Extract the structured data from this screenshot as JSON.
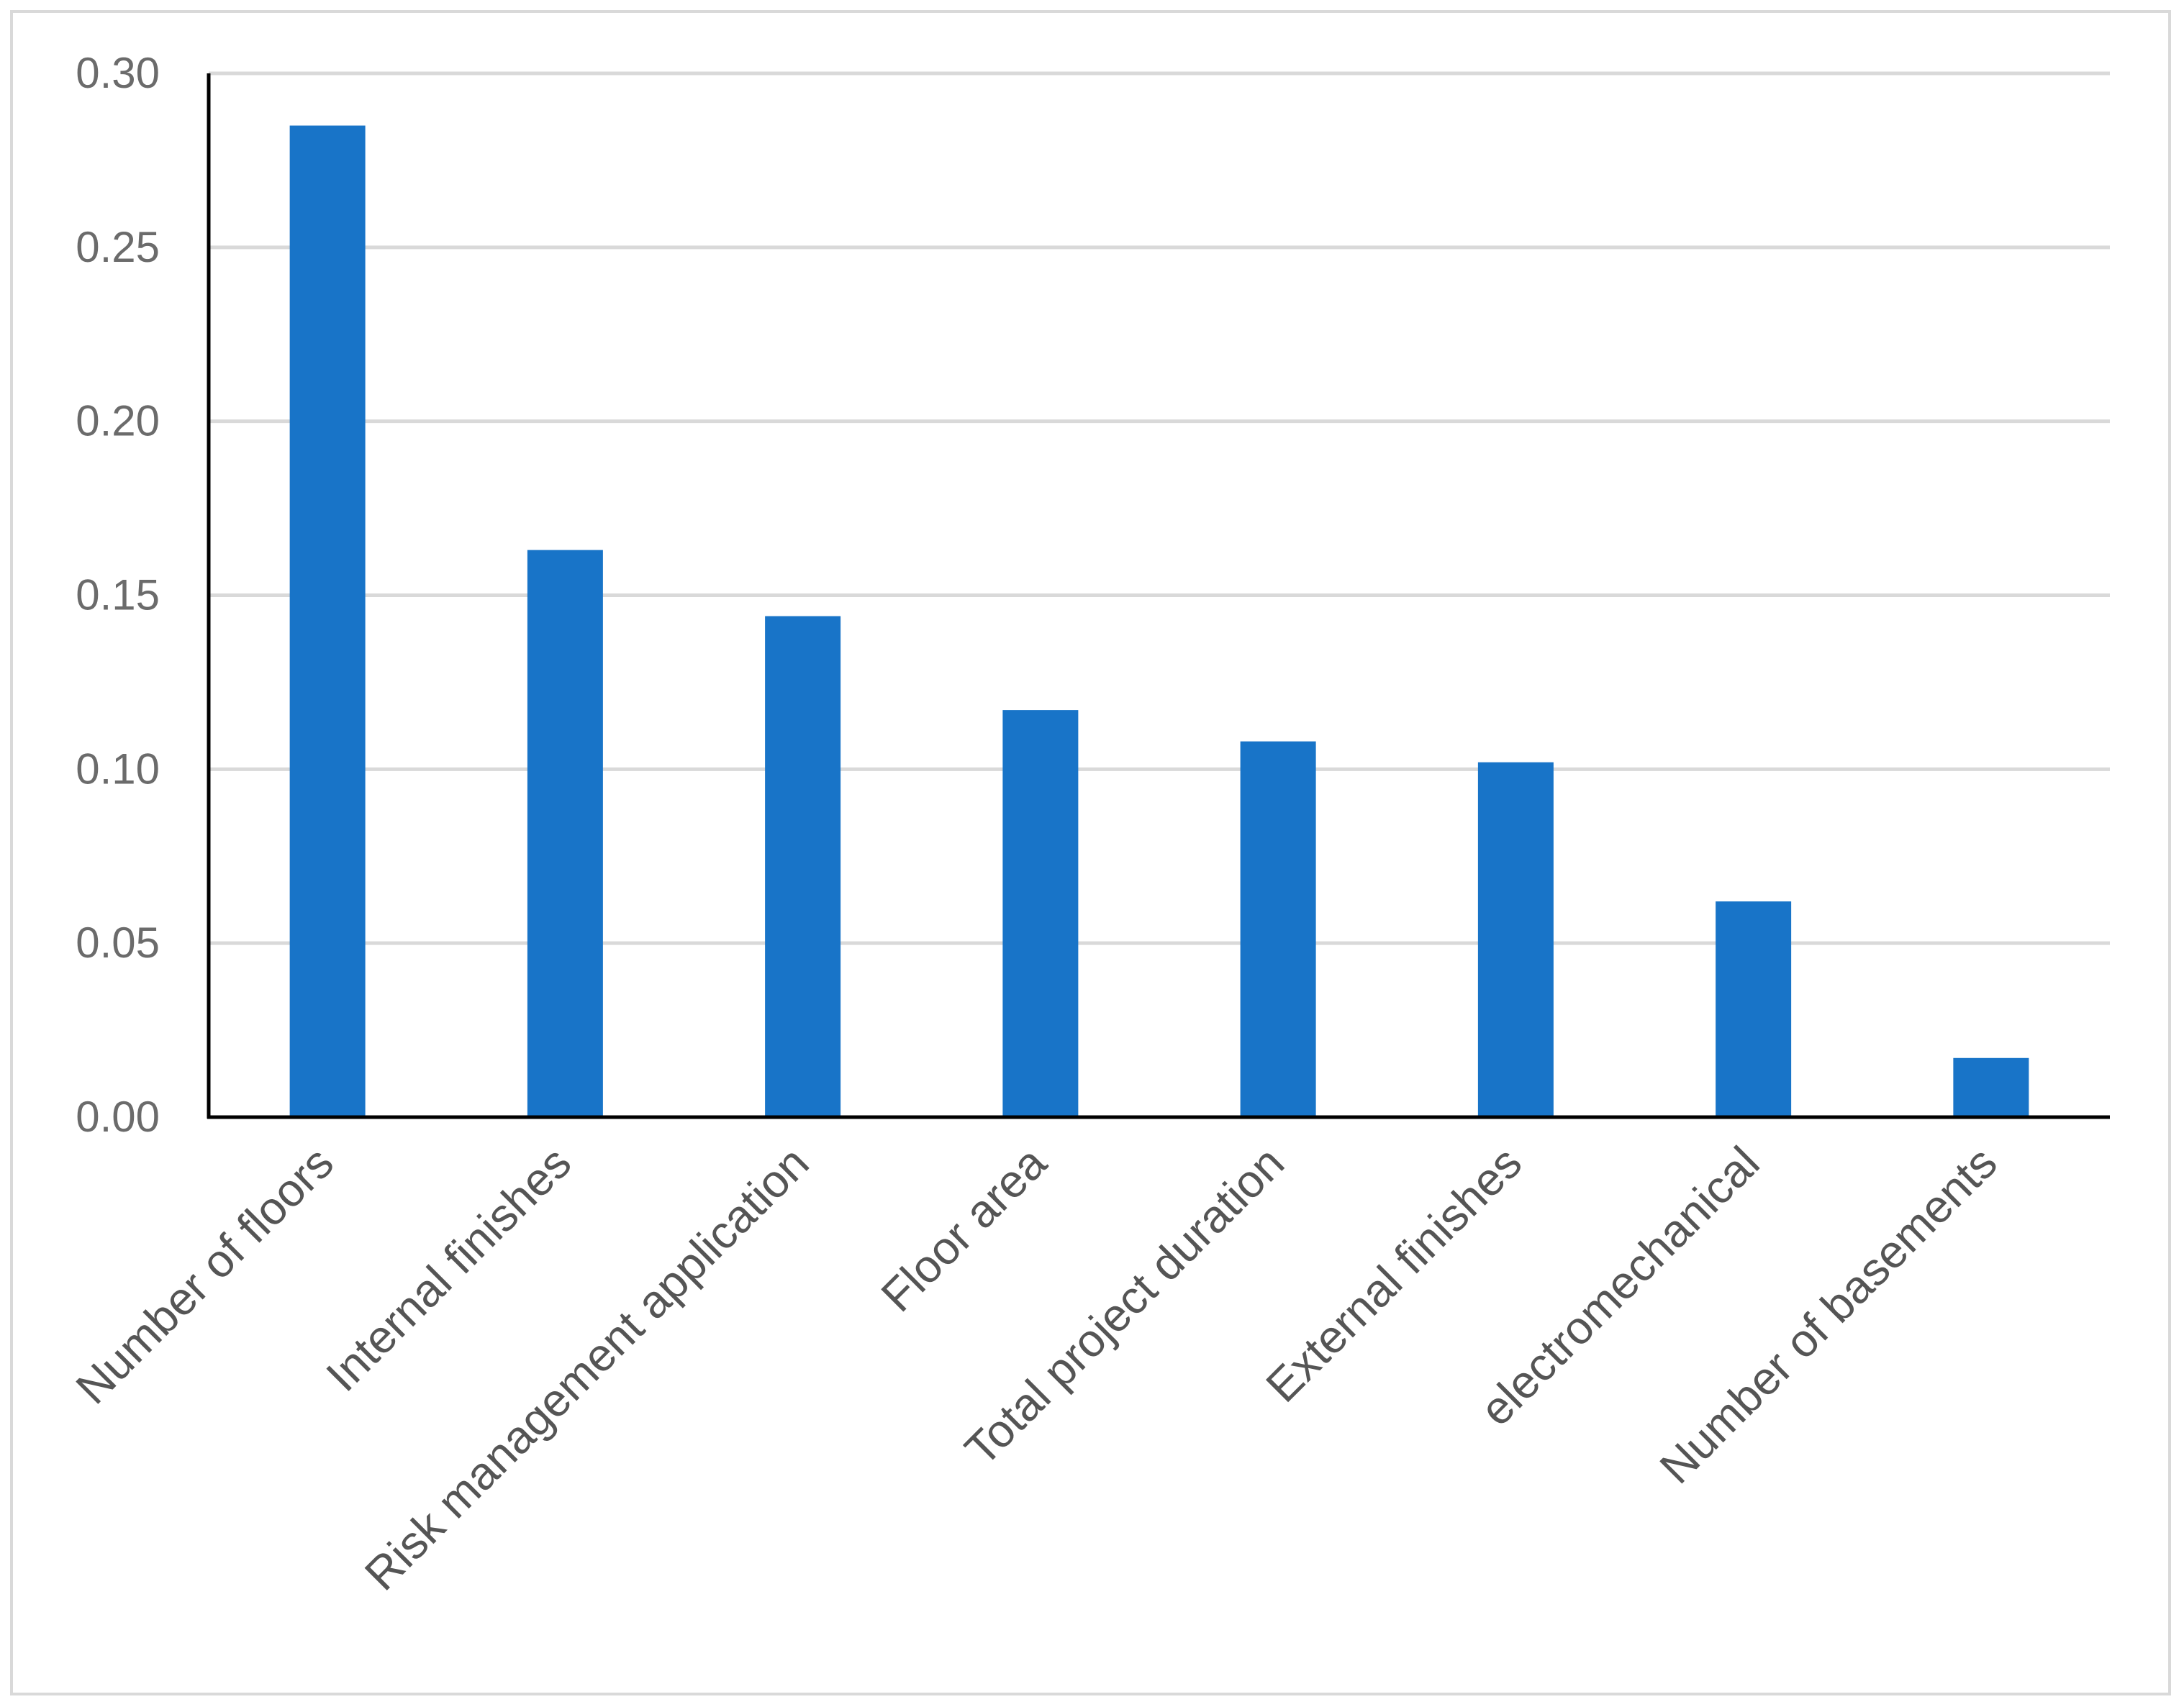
{
  "chart_data": {
    "type": "bar",
    "title": "",
    "xlabel": "",
    "ylabel": "",
    "categories": [
      "Number of floors",
      "Internal finishes",
      "Risk management application",
      "Floor area",
      "Total project duration",
      "External finishes",
      "electromechanical",
      "Number of basements"
    ],
    "values": [
      0.285,
      0.163,
      0.144,
      0.117,
      0.108,
      0.102,
      0.062,
      0.017
    ],
    "ylim": [
      0,
      0.3
    ],
    "yticks": [
      "0.00",
      "0.05",
      "0.10",
      "0.15",
      "0.20",
      "0.25",
      "0.30"
    ],
    "grid": true,
    "legend": "none",
    "bar_color": "#1874c8",
    "grid_color": "#d9d9d9",
    "axis_color": "#000000"
  }
}
